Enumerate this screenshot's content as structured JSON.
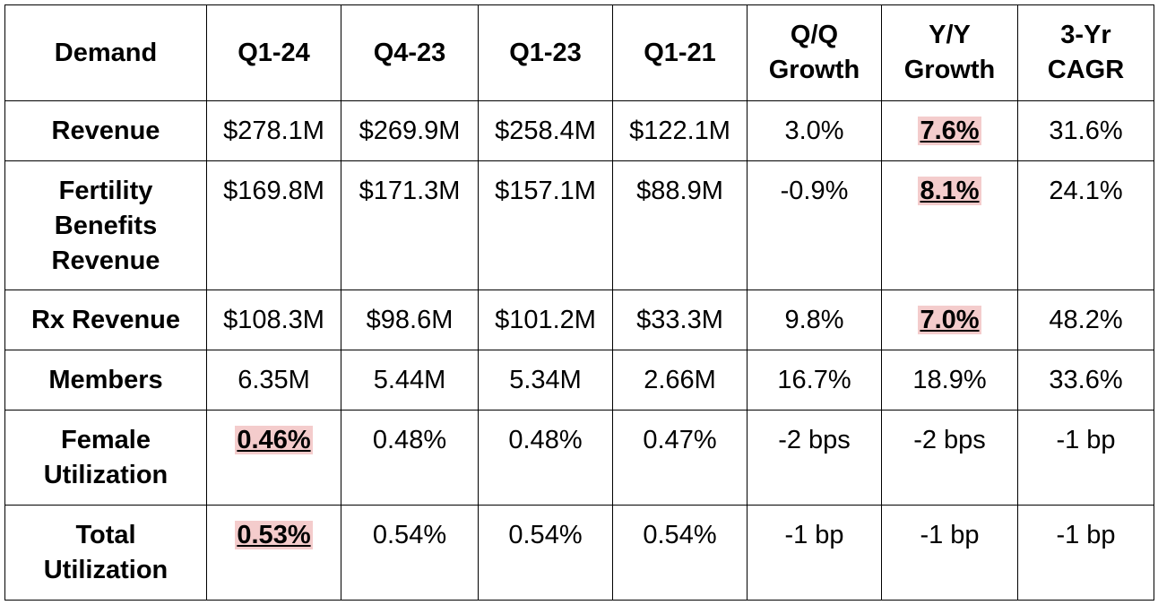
{
  "columns": [
    "Demand",
    "Q1-24",
    "Q4-23",
    "Q1-23",
    "Q1-21",
    "Q/Q Growth",
    "Y/Y Growth",
    "3-Yr CAGR"
  ],
  "headers": {
    "demand": "Demand",
    "q1_24": "Q1-24",
    "q4_23": "Q4-23",
    "q1_23": "Q1-23",
    "q1_21": "Q1-21",
    "qq_line1": "Q/Q",
    "qq_line2": "Growth",
    "yy_line1": "Y/Y",
    "yy_line2": "Growth",
    "cagr_line1": "3-Yr",
    "cagr_line2": "CAGR"
  },
  "rows": [
    {
      "label_lines": [
        "Revenue"
      ],
      "q1_24": "$278.1M",
      "q4_23": "$269.9M",
      "q1_23": "$258.4M",
      "q1_21": "$122.1M",
      "qq": "3.0%",
      "yy": "7.6%",
      "cagr": "31.6%"
    },
    {
      "label_lines": [
        "Fertility",
        "Benefits",
        "Revenue"
      ],
      "q1_24": "$169.8M",
      "q4_23": "$171.3M",
      "q1_23": "$157.1M",
      "q1_21": "$88.9M",
      "qq": "-0.9%",
      "yy": "8.1%",
      "cagr": "24.1%"
    },
    {
      "label_lines": [
        "Rx Revenue"
      ],
      "q1_24": "$108.3M",
      "q4_23": "$98.6M",
      "q1_23": "$101.2M",
      "q1_21": "$33.3M",
      "qq": "9.8%",
      "yy": "7.0%",
      "cagr": "48.2%"
    },
    {
      "label_lines": [
        "Members"
      ],
      "q1_24": "6.35M",
      "q4_23": "5.44M",
      "q1_23": "5.34M",
      "q1_21": "2.66M",
      "qq": "16.7%",
      "yy": "18.9%",
      "cagr": "33.6%"
    },
    {
      "label_lines": [
        "Female",
        "Utilization"
      ],
      "q1_24": "0.46%",
      "q4_23": "0.48%",
      "q1_23": "0.48%",
      "q1_21": "0.47%",
      "qq": "-2 bps",
      "yy": "-2 bps",
      "cagr": "-1 bp"
    },
    {
      "label_lines": [
        "Total",
        "Utilization"
      ],
      "q1_24": "0.53%",
      "q4_23": "0.54%",
      "q1_23": "0.54%",
      "q1_21": "0.54%",
      "qq": "-1 bp",
      "yy": "-1 bp",
      "cagr": "-1 bp"
    }
  ],
  "colors": {
    "highlight": "#f4cccc",
    "border": "#000000"
  }
}
